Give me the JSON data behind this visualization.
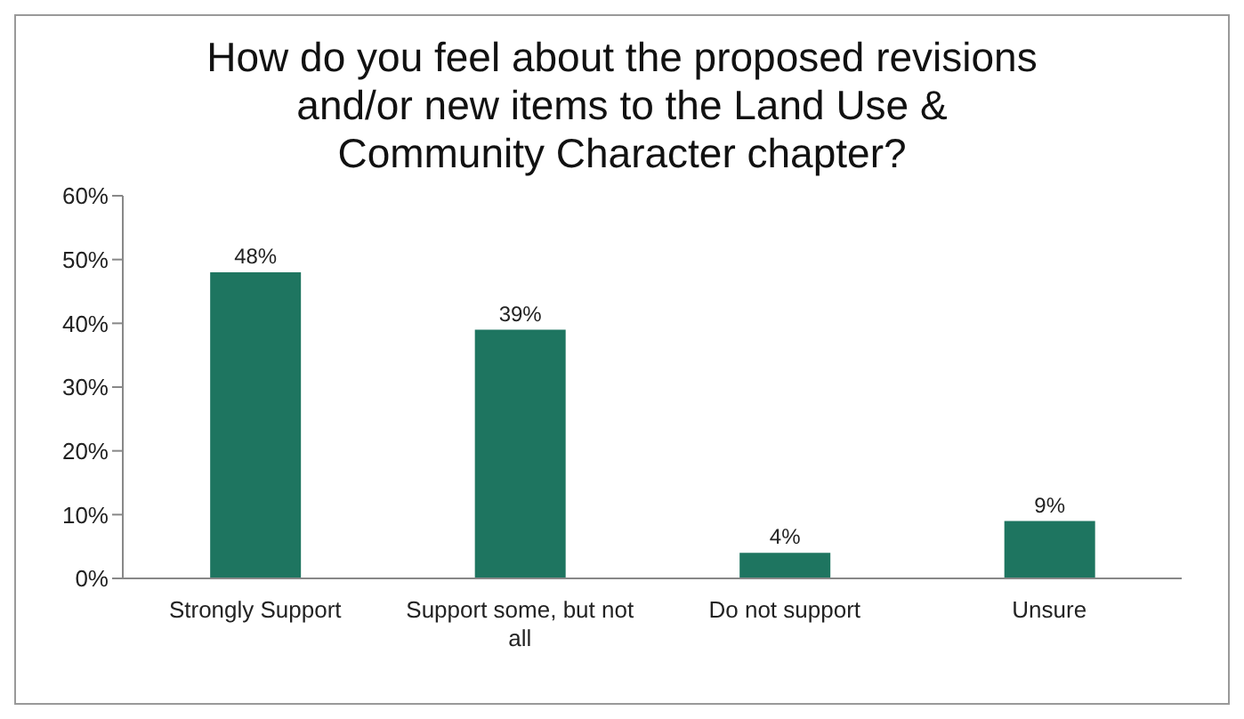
{
  "chart_data": {
    "type": "bar",
    "title": "How do you feel about the proposed revisions and/or new items to the Land Use & Community Character chapter?",
    "categories": [
      "Strongly Support",
      "Support some, but not all",
      "Do not support",
      "Unsure"
    ],
    "values": [
      48,
      39,
      4,
      9
    ],
    "value_labels": [
      "48%",
      "39%",
      "4%",
      "9%"
    ],
    "color": "#1e7560",
    "ylim": [
      0,
      60
    ],
    "yticks": [
      {
        "value": 0,
        "label": "0%"
      },
      {
        "value": 10,
        "label": "10%"
      },
      {
        "value": 20,
        "label": "20%"
      },
      {
        "value": 30,
        "label": "30%"
      },
      {
        "value": 40,
        "label": "40%"
      },
      {
        "value": 50,
        "label": "50%"
      },
      {
        "value": 60,
        "label": "60%"
      }
    ]
  }
}
